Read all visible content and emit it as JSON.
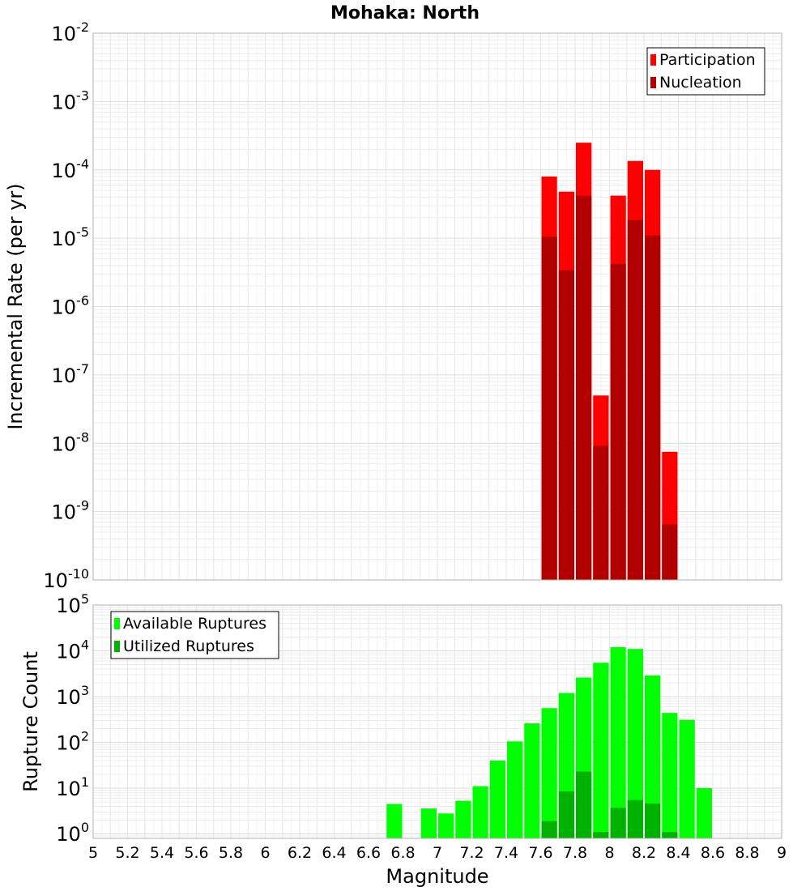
{
  "title": "Mohaka: North",
  "xlabel": "Magnitude",
  "chart_data": [
    {
      "type": "bar",
      "scale": "log",
      "ylabel": "Incremental Rate (per yr)",
      "xlim": [
        5,
        9
      ],
      "ylim": [
        1e-10,
        0.01
      ],
      "bin_width": 0.1,
      "grid": true,
      "legend_position": "top-right",
      "legend": [
        "Participation",
        "Nucleation"
      ],
      "colors": {
        "Participation": "#ff0000",
        "Nucleation": "#b20000"
      },
      "series": [
        {
          "name": "Participation",
          "x": [
            7.65,
            7.75,
            7.85,
            7.95,
            8.05,
            8.15,
            8.25,
            8.35
          ],
          "values": [
            8e-05,
            4.8e-05,
            0.00025,
            5e-08,
            4.2e-05,
            0.000135,
            0.0001,
            7.5e-09
          ]
        },
        {
          "name": "Nucleation",
          "x": [
            7.65,
            7.75,
            7.85,
            7.95,
            8.05,
            8.15,
            8.25,
            8.35
          ],
          "values": [
            1.05e-05,
            3.4e-06,
            4.2e-05,
            9.2e-09,
            4.2e-06,
            1.85e-05,
            1.1e-05,
            6.5e-10
          ]
        }
      ]
    },
    {
      "type": "bar",
      "scale": "log",
      "ylabel": "Rupture Count",
      "xlim": [
        5,
        9
      ],
      "ylim": [
        0.8,
        100000.0
      ],
      "bin_width": 0.1,
      "grid": true,
      "legend_position": "top-left",
      "legend": [
        "Available Ruptures",
        "Utilized Ruptures"
      ],
      "colors": {
        "Available Ruptures": "#00ff00",
        "Utilized Ruptures": "#00b200"
      },
      "series": [
        {
          "name": "Available Ruptures",
          "x": [
            6.75,
            6.95,
            7.05,
            7.15,
            7.25,
            7.35,
            7.45,
            7.55,
            7.65,
            7.75,
            7.85,
            7.95,
            8.05,
            8.15,
            8.25,
            8.35,
            8.45,
            8.55
          ],
          "values": [
            4.5,
            3.6,
            2.8,
            5.3,
            11,
            40,
            105,
            260,
            560,
            1200,
            2600,
            5500,
            12000,
            11000,
            2900,
            440,
            310,
            10
          ]
        },
        {
          "name": "Utilized Ruptures",
          "x": [
            7.65,
            7.75,
            7.85,
            7.95,
            8.05,
            8.15,
            8.25,
            8.35
          ],
          "values": [
            1.9,
            8.5,
            23,
            1.1,
            3.7,
            5.5,
            4.6,
            1.1
          ]
        }
      ]
    }
  ],
  "x_ticks": [
    "5",
    "5.2",
    "5.4",
    "5.6",
    "5.8",
    "6",
    "6.2",
    "6.4",
    "6.6",
    "6.8",
    "7",
    "7.2",
    "7.4",
    "7.6",
    "7.8",
    "8",
    "8.2",
    "8.4",
    "8.6",
    "8.8",
    "9"
  ]
}
